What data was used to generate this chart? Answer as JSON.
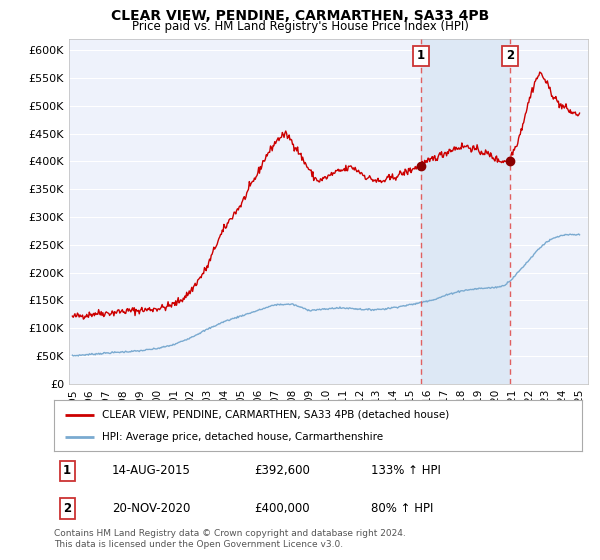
{
  "title": "CLEAR VIEW, PENDINE, CARMARTHEN, SA33 4PB",
  "subtitle": "Price paid vs. HM Land Registry's House Price Index (HPI)",
  "title_fontsize": 10,
  "subtitle_fontsize": 8.5,
  "ylabel_fontsize": 8,
  "xlabel_fontsize": 7.5,
  "legend_label_red": "CLEAR VIEW, PENDINE, CARMARTHEN, SA33 4PB (detached house)",
  "legend_label_blue": "HPI: Average price, detached house, Carmarthenshire",
  "annotation1_label": "1",
  "annotation1_date": "14-AUG-2015",
  "annotation1_price": "£392,600",
  "annotation1_hpi": "133% ↑ HPI",
  "annotation1_year": 2015.62,
  "annotation1_value": 392600,
  "annotation2_label": "2",
  "annotation2_date": "20-NOV-2020",
  "annotation2_price": "£400,000",
  "annotation2_hpi": "80% ↑ HPI",
  "annotation2_year": 2020.89,
  "annotation2_value": 400000,
  "footnote": "Contains HM Land Registry data © Crown copyright and database right 2024.\nThis data is licensed under the Open Government Licence v3.0.",
  "ylim": [
    0,
    620000
  ],
  "yticks": [
    0,
    50000,
    100000,
    150000,
    200000,
    250000,
    300000,
    350000,
    400000,
    450000,
    500000,
    550000,
    600000
  ],
  "ytick_labels": [
    "£0",
    "£50K",
    "£100K",
    "£150K",
    "£200K",
    "£250K",
    "£300K",
    "£350K",
    "£400K",
    "£450K",
    "£500K",
    "£550K",
    "£600K"
  ],
  "xlim_min": 1994.8,
  "xlim_max": 2025.5,
  "background_color": "#ffffff",
  "plot_bg_color": "#eef2fb",
  "plot_bg_color_highlighted": "#dce8f5",
  "grid_color": "#ffffff",
  "red_color": "#cc0000",
  "blue_color": "#7aaad0",
  "vline_color": "#e06060",
  "marker_color": "#8b0000",
  "shade_color": "#dde8f5"
}
